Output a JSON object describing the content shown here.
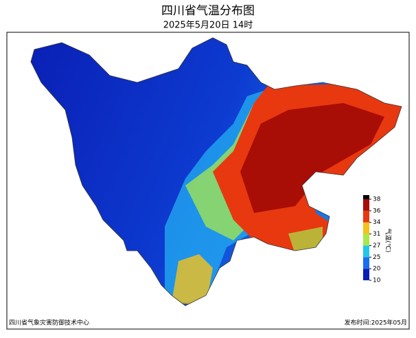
{
  "header": {
    "title": "四川省气温分布图",
    "subtitle": "2025年5月20日  14时"
  },
  "legend": {
    "label": "气温(℃)",
    "ticks": [
      10,
      20,
      25,
      27,
      31,
      34,
      36,
      38
    ],
    "colors": [
      "#0a1fb5",
      "#1a6ef0",
      "#22c7e8",
      "#a8e84a",
      "#f5c21b",
      "#e8380f",
      "#a80d06"
    ]
  },
  "footer": {
    "left": "四川省气象灾害防御技术中心",
    "right": "发布时间:2025年05月"
  }
}
